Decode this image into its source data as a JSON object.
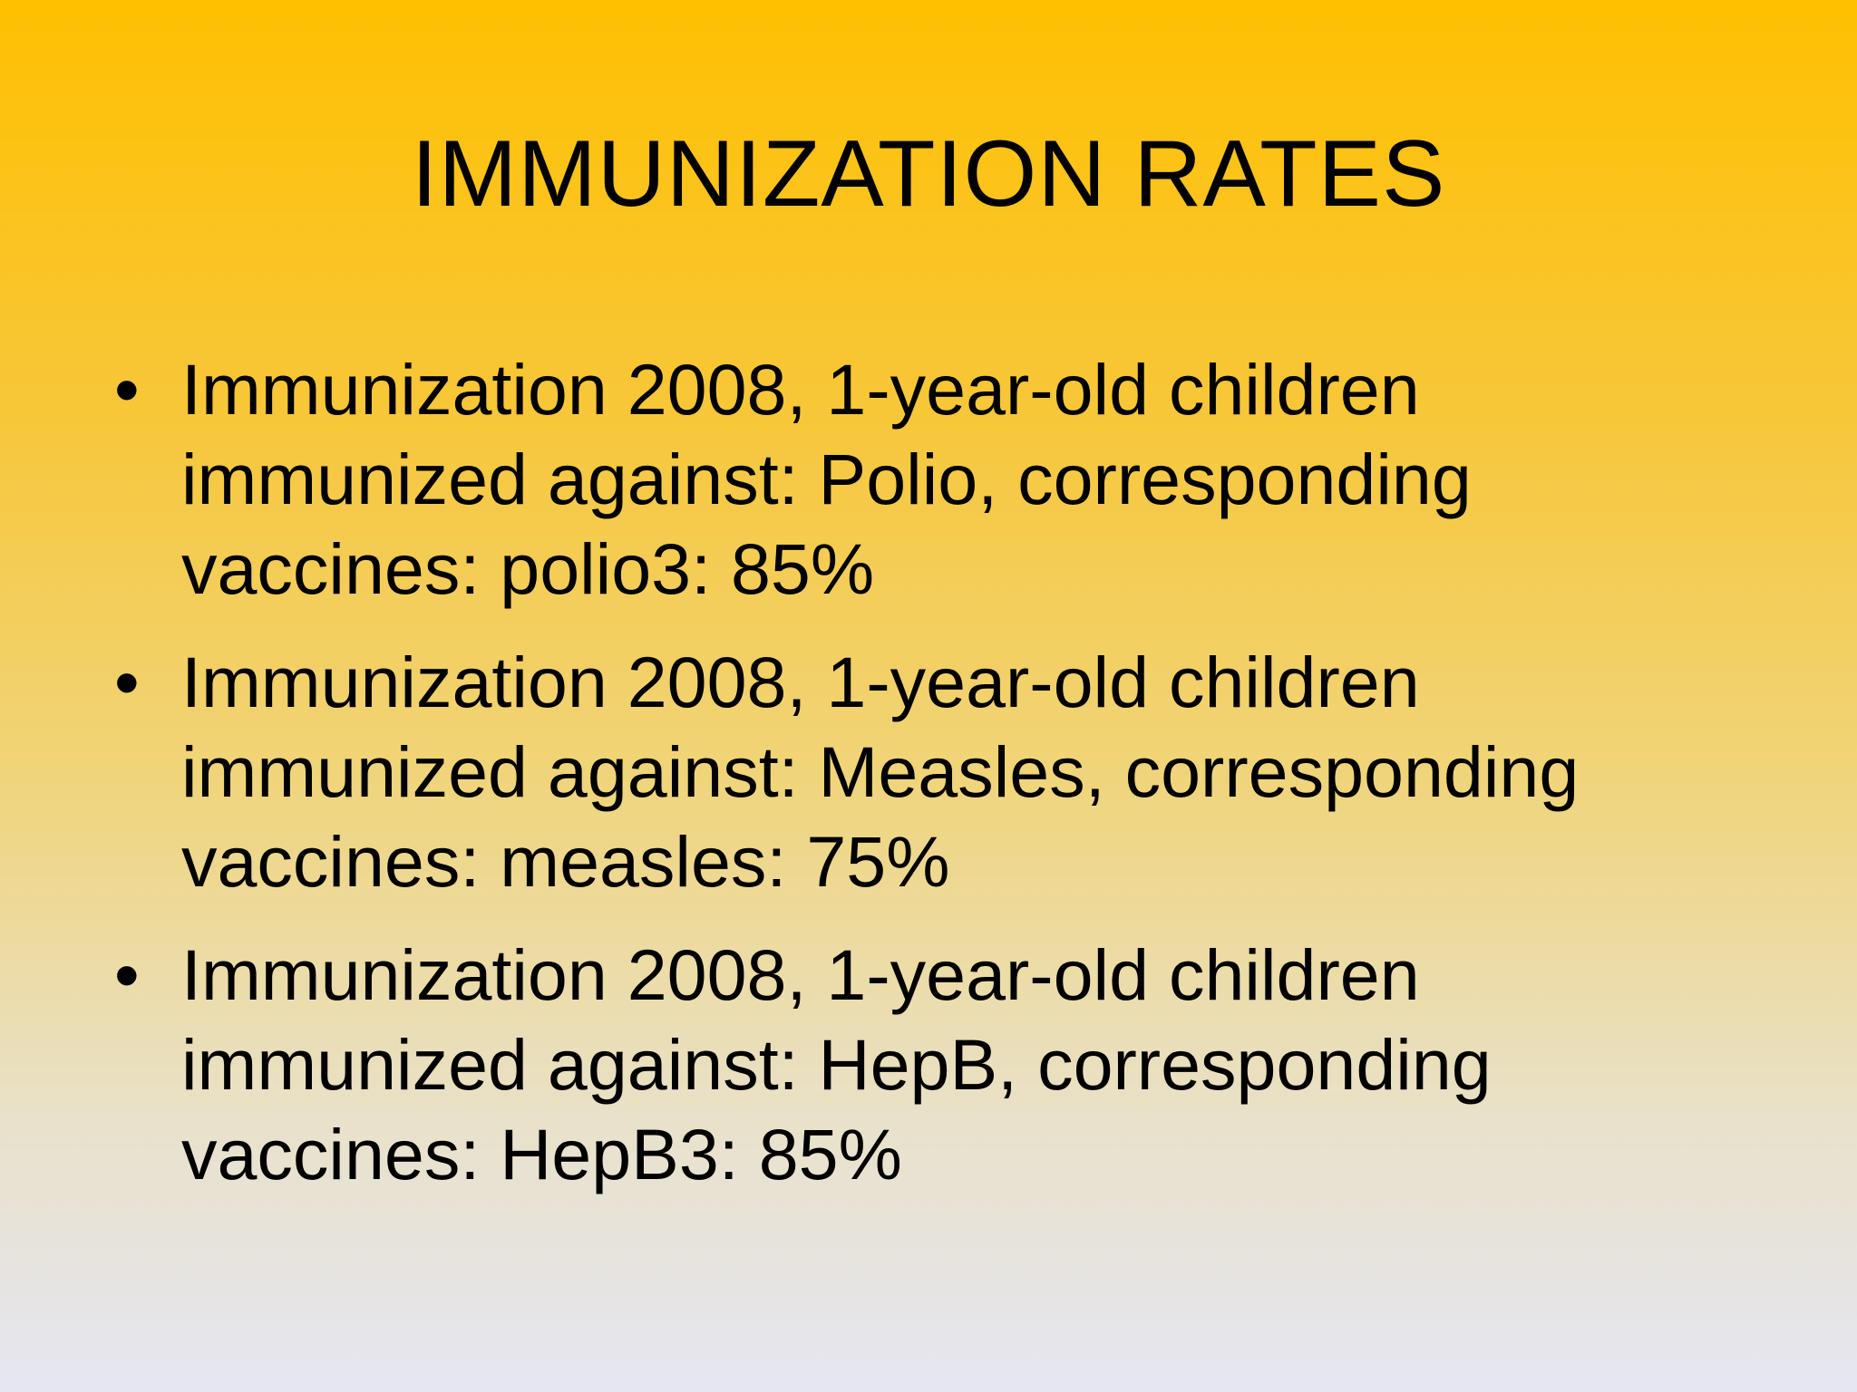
{
  "slide": {
    "title": "IMMUNIZATION RATES",
    "background_colors": [
      "#FFC000",
      "#E5E6F2"
    ],
    "bullets": [
      {
        "line1": "Immunization 2008, 1-year-old children",
        "line2": "immunized against: Polio, corresponding",
        "line3": "vaccines: polio3: 85%"
      },
      {
        "line1": "Immunization 2008, 1-year-old children",
        "line2": "immunized against: Measles, corresponding",
        "line3": "vaccines: measles: 75%"
      },
      {
        "line1": "Immunization 2008, 1-year-old children",
        "line2": "immunized against: HepB, corresponding",
        "line3": "vaccines: HepB3: 85%"
      }
    ]
  }
}
